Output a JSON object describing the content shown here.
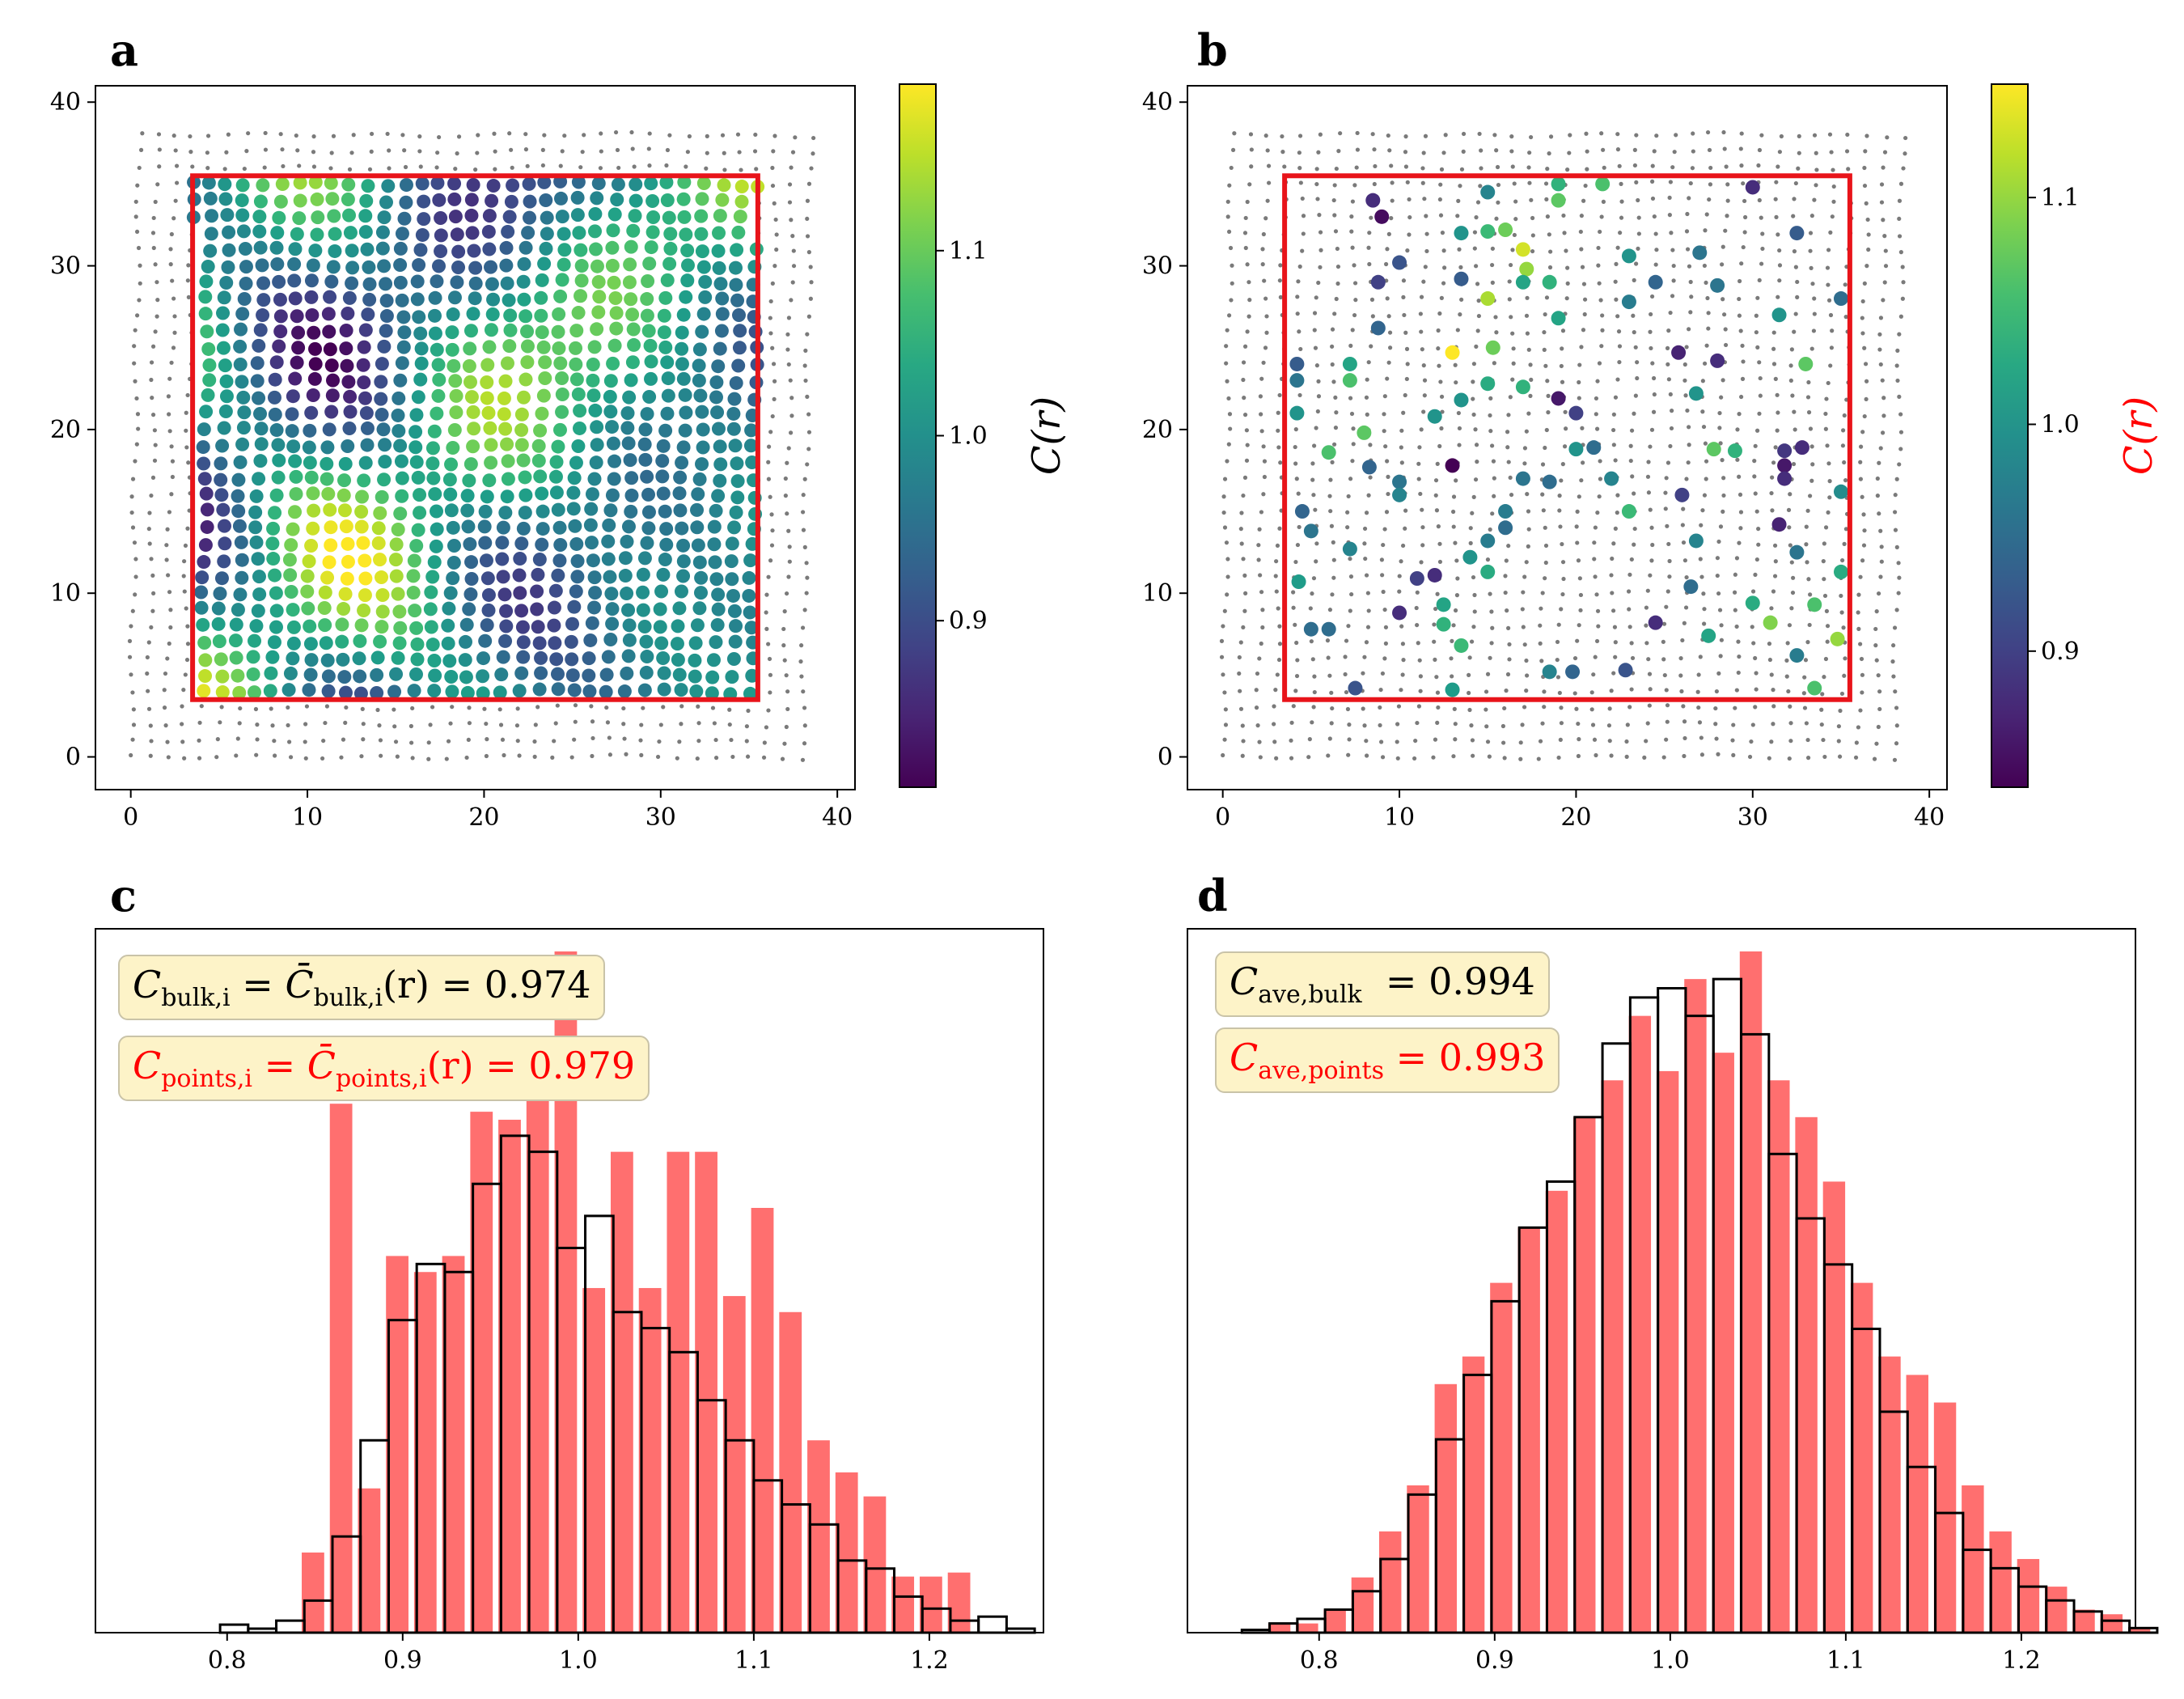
{
  "panels": {
    "a": "a",
    "b": "b",
    "c": "c",
    "d": "d"
  },
  "colors": {
    "region_box": "#e8141a",
    "grid_points": "#7a7a7a",
    "hist_fill": "#ff6f6f",
    "hist_edge": "#000000",
    "stat_box_bg": "#fdf3c8",
    "points_text": "#ff0000"
  },
  "chart_data": [
    {
      "id": "a",
      "type": "scatter",
      "title": "",
      "xlabel": "",
      "ylabel": "",
      "xlim": [
        -2,
        41
      ],
      "ylim": [
        -2,
        41
      ],
      "xticks": [
        0,
        10,
        20,
        30,
        40
      ],
      "yticks": [
        0,
        10,
        20,
        30,
        40
      ],
      "tick_labels": [
        "0",
        "10",
        "20",
        "30",
        "40"
      ],
      "grid_points": {
        "x_range": [
          0,
          38.5
        ],
        "y_range": [
          0,
          38.5
        ],
        "spacing": 1.0
      },
      "region": {
        "x": [
          3.5,
          35.5
        ],
        "y": [
          3.5,
          35.5
        ]
      },
      "colored_points": "all grid points inside region, colored by C(r)",
      "colorbar": {
        "label": "C(r)",
        "range": [
          0.81,
          1.19
        ],
        "ticks": [
          0.9,
          1.0,
          1.1
        ],
        "tick_labels": [
          "0.9",
          "1.0",
          "1.1"
        ]
      }
    },
    {
      "id": "b",
      "type": "scatter",
      "title": "",
      "xlabel": "",
      "ylabel": "",
      "xlim": [
        -2,
        41
      ],
      "ylim": [
        -2,
        41
      ],
      "xticks": [
        0,
        10,
        20,
        30,
        40
      ],
      "yticks": [
        0,
        10,
        20,
        30,
        40
      ],
      "tick_labels": [
        "0",
        "10",
        "20",
        "30",
        "40"
      ],
      "region": {
        "x": [
          3.5,
          35.5
        ],
        "y": [
          3.5,
          35.5
        ]
      },
      "points": [
        [
          8.5,
          34,
          0.88
        ],
        [
          9,
          33,
          0.85
        ],
        [
          15,
          34.5,
          0.98
        ],
        [
          19,
          35,
          1.04
        ],
        [
          21.5,
          35,
          1.06
        ],
        [
          30,
          34.8,
          0.88
        ],
        [
          10,
          30.2,
          0.92
        ],
        [
          8.8,
          29,
          0.9
        ],
        [
          13.5,
          32,
          1.0
        ],
        [
          15,
          32.1,
          1.05
        ],
        [
          16,
          32.2,
          1.08
        ],
        [
          17,
          31,
          1.13
        ],
        [
          17.2,
          29.8,
          1.1
        ],
        [
          17,
          29,
          1.02
        ],
        [
          18.5,
          29,
          1.04
        ],
        [
          19,
          34,
          1.07
        ],
        [
          23,
          30.6,
          1.0
        ],
        [
          24.5,
          29,
          0.94
        ],
        [
          27,
          30.8,
          0.96
        ],
        [
          32.5,
          32,
          0.93
        ],
        [
          13.5,
          29.2,
          0.93
        ],
        [
          15,
          28,
          1.11
        ],
        [
          23,
          27.8,
          0.97
        ],
        [
          28,
          28.8,
          0.96
        ],
        [
          31.5,
          27,
          1.0
        ],
        [
          35,
          28,
          0.95
        ],
        [
          8.8,
          26.2,
          0.94
        ],
        [
          19,
          26.8,
          1.02
        ],
        [
          13,
          24.7,
          1.15
        ],
        [
          15.3,
          25,
          1.08
        ],
        [
          25.8,
          24.7,
          0.87
        ],
        [
          28,
          24.2,
          0.88
        ],
        [
          33,
          24,
          1.07
        ],
        [
          4.2,
          24,
          0.93
        ],
        [
          4.2,
          23,
          0.96
        ],
        [
          7.2,
          24,
          1.02
        ],
        [
          7.2,
          23,
          1.06
        ],
        [
          15,
          22.8,
          1.03
        ],
        [
          17,
          22.6,
          1.04
        ],
        [
          19,
          21.9,
          0.86
        ],
        [
          26.8,
          22.2,
          1.0
        ],
        [
          13.5,
          21.8,
          1.0
        ],
        [
          12,
          20.8,
          1.0
        ],
        [
          20,
          21,
          0.9
        ],
        [
          4.2,
          21,
          1.0
        ],
        [
          8,
          19.8,
          1.07
        ],
        [
          6,
          18.6,
          1.06
        ],
        [
          8.3,
          17.7,
          0.94
        ],
        [
          13,
          17.8,
          0.82
        ],
        [
          17,
          17,
          0.96
        ],
        [
          18.5,
          16.8,
          0.95
        ],
        [
          20,
          18.8,
          1.0
        ],
        [
          21,
          18.9,
          0.95
        ],
        [
          22,
          17,
          0.98
        ],
        [
          23,
          15,
          1.05
        ],
        [
          27.8,
          18.8,
          1.07
        ],
        [
          29,
          18.7,
          1.04
        ],
        [
          31.8,
          18.7,
          0.89
        ],
        [
          31.8,
          17.8,
          0.86
        ],
        [
          32.8,
          18.9,
          0.88
        ],
        [
          31.8,
          17,
          0.88
        ],
        [
          26,
          16,
          0.9
        ],
        [
          10,
          16.8,
          0.96
        ],
        [
          10,
          16,
          0.98
        ],
        [
          35,
          16.2,
          0.99
        ],
        [
          4.5,
          15,
          0.94
        ],
        [
          5,
          13.8,
          0.96
        ],
        [
          7.2,
          12.7,
          0.98
        ],
        [
          16,
          15,
          0.97
        ],
        [
          16,
          14,
          0.95
        ],
        [
          15,
          13.2,
          0.97
        ],
        [
          14,
          12.2,
          1.0
        ],
        [
          26.8,
          13.2,
          0.98
        ],
        [
          32.5,
          12.5,
          0.96
        ],
        [
          31.5,
          14.2,
          0.87
        ],
        [
          4.3,
          10.7,
          1.01
        ],
        [
          12,
          11.1,
          0.88
        ],
        [
          11,
          10.9,
          0.9
        ],
        [
          10,
          8.8,
          0.88
        ],
        [
          12.5,
          9.3,
          1.02
        ],
        [
          12.5,
          8.1,
          1.04
        ],
        [
          13.5,
          6.8,
          1.05
        ],
        [
          15,
          11.3,
          1.03
        ],
        [
          24.5,
          8.2,
          0.88
        ],
        [
          26.5,
          10.4,
          0.95
        ],
        [
          27.5,
          7.4,
          1.02
        ],
        [
          30,
          9.4,
          1.03
        ],
        [
          31,
          8.2,
          1.09
        ],
        [
          33.5,
          9.3,
          1.06
        ],
        [
          35,
          11.3,
          1.03
        ],
        [
          34.8,
          7.2,
          1.1
        ],
        [
          32.5,
          6.2,
          0.97
        ],
        [
          33.5,
          4.2,
          1.06
        ],
        [
          5,
          7.8,
          0.95
        ],
        [
          6,
          7.8,
          0.95
        ],
        [
          7.5,
          4.2,
          0.92
        ],
        [
          13,
          4.1,
          1.01
        ],
        [
          18.5,
          5.2,
          0.98
        ],
        [
          19.8,
          5.2,
          0.94
        ],
        [
          22.8,
          5.3,
          0.92
        ]
      ],
      "colorbar": {
        "label": "C(r)",
        "range": [
          0.84,
          1.15
        ],
        "ticks": [
          0.9,
          1.0,
          1.1
        ],
        "tick_labels": [
          "0.9",
          "1.0",
          "1.1"
        ]
      }
    },
    {
      "id": "c",
      "type": "histogram",
      "title": "",
      "xlim": [
        0.725,
        1.265
      ],
      "xticks": [
        0.8,
        0.9,
        1.0,
        1.1,
        1.2
      ],
      "tick_labels": [
        "0.8",
        "0.9",
        "1.0",
        "1.1",
        "1.2"
      ],
      "bin_width": 0.016,
      "bins_start": 0.796,
      "bulk_counts": [
        1,
        0.5,
        1.5,
        4,
        12,
        24,
        39,
        46,
        45,
        56,
        62,
        60,
        48,
        52,
        40,
        38,
        35,
        29,
        24,
        19,
        16,
        13.5,
        9,
        8,
        4.5,
        3,
        1.5,
        2,
        0.5
      ],
      "points_start": 0.8425,
      "points_counts": [
        10,
        66,
        18,
        47,
        45,
        47,
        65,
        64,
        72,
        85,
        43,
        60,
        43,
        60,
        60,
        42,
        53,
        40,
        24,
        20,
        17,
        7,
        7,
        7.5
      ],
      "legend": [
        {
          "lhs": "C",
          "lhs_sub": "bulk,i",
          "eq1": " = ",
          "rhs": "C̄",
          "rhs_sub": "bulk,i",
          "rhs_tail": "(r)",
          "eq2": " = ",
          "value": "0.974",
          "color": "#000000"
        },
        {
          "lhs": "C",
          "lhs_sub": "points,i",
          "eq1": " = ",
          "rhs": "C̄",
          "rhs_sub": "points,i",
          "rhs_tail": "(r)",
          "eq2": " = ",
          "value": "0.979",
          "color": "#ff0000"
        }
      ]
    },
    {
      "id": "d",
      "type": "histogram",
      "title": "",
      "xlim": [
        0.725,
        1.265
      ],
      "xticks": [
        0.8,
        0.9,
        1.0,
        1.1,
        1.2
      ],
      "tick_labels": [
        "0.8",
        "0.9",
        "1.0",
        "1.1",
        "1.2"
      ],
      "bin_width": 0.0158,
      "bins_start": 0.756,
      "bulk_counts": [
        0.3,
        1,
        1.5,
        2.5,
        4.5,
        8,
        15,
        21,
        28,
        36,
        44,
        49,
        56,
        64,
        69,
        70,
        67,
        71,
        65,
        52,
        45,
        40,
        33,
        24,
        18,
        13,
        9,
        7,
        5,
        3.5,
        2.3,
        1.3,
        0.5
      ],
      "points_start": 0.771,
      "points_counts": [
        1,
        1,
        2.5,
        6,
        11,
        16,
        27,
        30,
        38,
        44,
        48,
        56,
        60,
        67,
        61,
        71,
        63,
        74,
        60,
        56,
        49,
        38,
        30,
        28,
        25,
        16,
        11,
        8,
        5,
        2.5,
        2,
        0.5
      ],
      "legend": [
        {
          "lhs": "C",
          "lhs_sub": "ave,bulk",
          "eq": "  = ",
          "value": "0.994",
          "color": "#000000"
        },
        {
          "lhs": "C",
          "lhs_sub": "ave,points",
          "eq": " = ",
          "value": "0.993",
          "color": "#ff0000"
        }
      ]
    }
  ]
}
